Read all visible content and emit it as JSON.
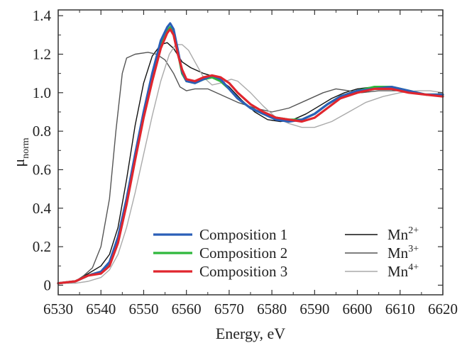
{
  "chart_data": {
    "type": "line",
    "xlabel": "Energy, eV",
    "ylabel": "μnorm",
    "ylabel_parts": {
      "base": "μ",
      "sub": "norm"
    },
    "xlim": [
      6530,
      6620
    ],
    "ylim": [
      -0.05,
      1.43
    ],
    "xticks": [
      6530,
      6540,
      6550,
      6560,
      6570,
      6580,
      6590,
      6600,
      6610,
      6620
    ],
    "yticks": [
      0,
      0.2,
      0.4,
      0.6,
      0.8,
      1.0,
      1.2,
      1.4
    ],
    "ytick_labels": [
      "0",
      "0.2",
      "0.4",
      "0.6",
      "0.8",
      "1.0",
      "1.2",
      "1.4"
    ],
    "grid": false,
    "legend_placement": "bottom-right",
    "series": [
      {
        "name": "Composition 1",
        "color": "#2b5fb8",
        "width": 3.2,
        "points": [
          [
            6530,
            0.01
          ],
          [
            6534,
            0.02
          ],
          [
            6537,
            0.05
          ],
          [
            6540,
            0.07
          ],
          [
            6542,
            0.12
          ],
          [
            6544,
            0.25
          ],
          [
            6546,
            0.45
          ],
          [
            6548,
            0.68
          ],
          [
            6550,
            0.9
          ],
          [
            6552,
            1.1
          ],
          [
            6554,
            1.27
          ],
          [
            6555.5,
            1.34
          ],
          [
            6556.2,
            1.36
          ],
          [
            6557,
            1.33
          ],
          [
            6558,
            1.22
          ],
          [
            6559,
            1.11
          ],
          [
            6560,
            1.06
          ],
          [
            6562,
            1.05
          ],
          [
            6564,
            1.07
          ],
          [
            6566,
            1.09
          ],
          [
            6568,
            1.07
          ],
          [
            6570,
            1.02
          ],
          [
            6572,
            0.97
          ],
          [
            6575,
            0.92
          ],
          [
            6578,
            0.89
          ],
          [
            6581,
            0.86
          ],
          [
            6584,
            0.85
          ],
          [
            6587,
            0.86
          ],
          [
            6590,
            0.89
          ],
          [
            6593,
            0.94
          ],
          [
            6596,
            0.98
          ],
          [
            6600,
            1.01
          ],
          [
            6604,
            1.02
          ],
          [
            6608,
            1.03
          ],
          [
            6612,
            1.01
          ],
          [
            6616,
            0.99
          ],
          [
            6620,
            0.99
          ]
        ]
      },
      {
        "name": "Composition 2",
        "color": "#2fb83c",
        "width": 3.2,
        "points": [
          [
            6530,
            0.01
          ],
          [
            6534,
            0.02
          ],
          [
            6537,
            0.05
          ],
          [
            6540,
            0.07
          ],
          [
            6542,
            0.11
          ],
          [
            6544,
            0.24
          ],
          [
            6546,
            0.44
          ],
          [
            6548,
            0.67
          ],
          [
            6550,
            0.89
          ],
          [
            6552,
            1.09
          ],
          [
            6554,
            1.25
          ],
          [
            6555.5,
            1.32
          ],
          [
            6556.2,
            1.34
          ],
          [
            6557,
            1.31
          ],
          [
            6558,
            1.21
          ],
          [
            6559,
            1.1
          ],
          [
            6560,
            1.06
          ],
          [
            6562,
            1.05
          ],
          [
            6564,
            1.07
          ],
          [
            6566,
            1.08
          ],
          [
            6568,
            1.06
          ],
          [
            6570,
            1.02
          ],
          [
            6572,
            0.97
          ],
          [
            6575,
            0.92
          ],
          [
            6578,
            0.89
          ],
          [
            6581,
            0.87
          ],
          [
            6584,
            0.86
          ],
          [
            6587,
            0.86
          ],
          [
            6590,
            0.89
          ],
          [
            6593,
            0.94
          ],
          [
            6596,
            0.98
          ],
          [
            6600,
            1.01
          ],
          [
            6604,
            1.03
          ],
          [
            6608,
            1.03
          ],
          [
            6612,
            1.01
          ],
          [
            6616,
            0.99
          ],
          [
            6620,
            0.99
          ]
        ]
      },
      {
        "name": "Composition 3",
        "color": "#e0262e",
        "width": 3.2,
        "points": [
          [
            6530,
            0.01
          ],
          [
            6534,
            0.02
          ],
          [
            6537,
            0.05
          ],
          [
            6540,
            0.06
          ],
          [
            6542,
            0.1
          ],
          [
            6544,
            0.22
          ],
          [
            6546,
            0.42
          ],
          [
            6548,
            0.65
          ],
          [
            6550,
            0.87
          ],
          [
            6552,
            1.06
          ],
          [
            6554,
            1.23
          ],
          [
            6555.5,
            1.31
          ],
          [
            6556.2,
            1.33
          ],
          [
            6557,
            1.3
          ],
          [
            6558,
            1.2
          ],
          [
            6559,
            1.12
          ],
          [
            6560,
            1.07
          ],
          [
            6562,
            1.06
          ],
          [
            6564,
            1.08
          ],
          [
            6566,
            1.09
          ],
          [
            6568,
            1.08
          ],
          [
            6570,
            1.05
          ],
          [
            6572,
            1.0
          ],
          [
            6575,
            0.94
          ],
          [
            6578,
            0.9
          ],
          [
            6581,
            0.87
          ],
          [
            6584,
            0.86
          ],
          [
            6587,
            0.85
          ],
          [
            6590,
            0.87
          ],
          [
            6593,
            0.92
          ],
          [
            6596,
            0.97
          ],
          [
            6600,
            1.0
          ],
          [
            6604,
            1.02
          ],
          [
            6608,
            1.02
          ],
          [
            6612,
            1.0
          ],
          [
            6616,
            0.99
          ],
          [
            6620,
            0.98
          ]
        ]
      },
      {
        "name": "Mn2+",
        "label_base": "Mn",
        "label_sup": "2+",
        "color": "#111111",
        "width": 1.4,
        "points": [
          [
            6530,
            0.01
          ],
          [
            6534,
            0.02
          ],
          [
            6537,
            0.06
          ],
          [
            6540,
            0.1
          ],
          [
            6542,
            0.16
          ],
          [
            6544,
            0.3
          ],
          [
            6546,
            0.55
          ],
          [
            6548,
            0.83
          ],
          [
            6550,
            1.05
          ],
          [
            6552,
            1.19
          ],
          [
            6554,
            1.25
          ],
          [
            6555.5,
            1.26
          ],
          [
            6557,
            1.23
          ],
          [
            6559,
            1.16
          ],
          [
            6561,
            1.13
          ],
          [
            6564,
            1.1
          ],
          [
            6567,
            1.08
          ],
          [
            6570,
            1.03
          ],
          [
            6573,
            0.96
          ],
          [
            6576,
            0.9
          ],
          [
            6579,
            0.86
          ],
          [
            6582,
            0.85
          ],
          [
            6585,
            0.86
          ],
          [
            6588,
            0.89
          ],
          [
            6591,
            0.93
          ],
          [
            6594,
            0.97
          ],
          [
            6597,
            1.0
          ],
          [
            6600,
            1.02
          ],
          [
            6604,
            1.03
          ],
          [
            6608,
            1.03
          ],
          [
            6612,
            1.01
          ],
          [
            6616,
            0.99
          ],
          [
            6620,
            0.99
          ]
        ]
      },
      {
        "name": "Mn3+",
        "label_base": "Mn",
        "label_sup": "3+",
        "color": "#555555",
        "width": 1.4,
        "points": [
          [
            6530,
            0.01
          ],
          [
            6534,
            0.02
          ],
          [
            6536,
            0.05
          ],
          [
            6538,
            0.09
          ],
          [
            6540,
            0.2
          ],
          [
            6542,
            0.45
          ],
          [
            6543.5,
            0.8
          ],
          [
            6545,
            1.1
          ],
          [
            6546,
            1.18
          ],
          [
            6548,
            1.2
          ],
          [
            6551,
            1.21
          ],
          [
            6553,
            1.2
          ],
          [
            6555,
            1.17
          ],
          [
            6557,
            1.1
          ],
          [
            6558.5,
            1.03
          ],
          [
            6560,
            1.01
          ],
          [
            6562,
            1.02
          ],
          [
            6565,
            1.02
          ],
          [
            6568,
            0.99
          ],
          [
            6572,
            0.95
          ],
          [
            6576,
            0.92
          ],
          [
            6580,
            0.9
          ],
          [
            6584,
            0.92
          ],
          [
            6588,
            0.96
          ],
          [
            6592,
            1.0
          ],
          [
            6595,
            1.02
          ],
          [
            6598,
            1.01
          ],
          [
            6601,
            1.0
          ],
          [
            6605,
            1.01
          ],
          [
            6610,
            1.01
          ],
          [
            6615,
            0.99
          ],
          [
            6620,
            0.98
          ]
        ]
      },
      {
        "name": "Mn4+",
        "label_base": "Mn",
        "label_sup": "4+",
        "color": "#aaaaaa",
        "width": 1.4,
        "points": [
          [
            6530,
            0.01
          ],
          [
            6534,
            0.01
          ],
          [
            6537,
            0.02
          ],
          [
            6540,
            0.04
          ],
          [
            6542,
            0.08
          ],
          [
            6544,
            0.16
          ],
          [
            6546,
            0.3
          ],
          [
            6548,
            0.48
          ],
          [
            6550,
            0.68
          ],
          [
            6552,
            0.88
          ],
          [
            6554,
            1.06
          ],
          [
            6556,
            1.2
          ],
          [
            6557.5,
            1.25
          ],
          [
            6559,
            1.25
          ],
          [
            6560.5,
            1.22
          ],
          [
            6562,
            1.16
          ],
          [
            6564,
            1.08
          ],
          [
            6566,
            1.04
          ],
          [
            6568,
            1.05
          ],
          [
            6570.5,
            1.07
          ],
          [
            6572,
            1.06
          ],
          [
            6575,
            1.0
          ],
          [
            6578,
            0.93
          ],
          [
            6581,
            0.87
          ],
          [
            6584,
            0.84
          ],
          [
            6587,
            0.82
          ],
          [
            6590,
            0.82
          ],
          [
            6594,
            0.85
          ],
          [
            6598,
            0.9
          ],
          [
            6602,
            0.95
          ],
          [
            6606,
            0.98
          ],
          [
            6610,
            1.0
          ],
          [
            6614,
            1.01
          ],
          [
            6617,
            1.01
          ],
          [
            6620,
            1.0
          ]
        ]
      }
    ]
  }
}
